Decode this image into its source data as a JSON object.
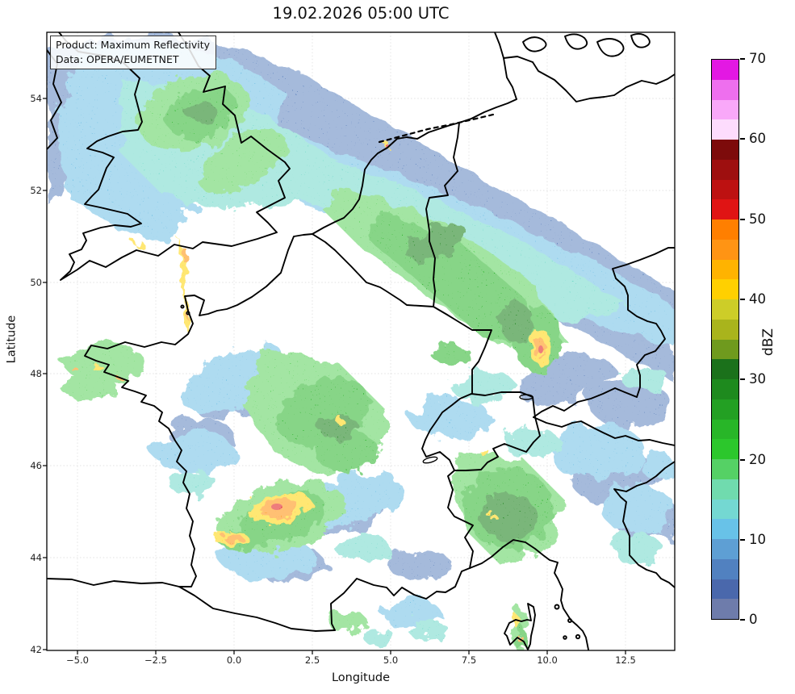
{
  "title": "19.02.2026 05:00 UTC",
  "info_box": {
    "line1": "Product: Maximum Reflectivity",
    "line2": "Data: OPERA/EUMETNET"
  },
  "axes": {
    "xlabel": "Longitude",
    "ylabel": "Latitude",
    "x_ticks": [
      "−5.0",
      "−2.5",
      "0.0",
      "2.5",
      "5.0",
      "7.5",
      "10.0",
      "12.5"
    ],
    "y_ticks": [
      "54",
      "52",
      "50",
      "48",
      "46",
      "44",
      "42"
    ],
    "x_range": [
      -6.0,
      14.1
    ],
    "y_range": [
      42.0,
      55.4
    ]
  },
  "colorbar": {
    "label": "dBZ",
    "ticks": [
      "70",
      "60",
      "50",
      "40",
      "30",
      "20",
      "10",
      "0"
    ],
    "min": 0,
    "max": 70,
    "band_step_dbz": 2.5,
    "bands_top_to_bottom": [
      "#e318e3",
      "#ee6fee",
      "#f9a8f9",
      "#fddcfd",
      "#7d0b0b",
      "#9e0f0f",
      "#bd1111",
      "#e01414",
      "#ff7f00",
      "#ff9414",
      "#ffb300",
      "#ffd000",
      "#cdcd28",
      "#a9b41c",
      "#6f9a1e",
      "#1b711b",
      "#1e8a1e",
      "#23a023",
      "#28b628",
      "#2cc72c",
      "#55d165",
      "#70dbae",
      "#74d8d2",
      "#68c2e8",
      "#5e9fd4",
      "#5181c0",
      "#4a68ac",
      "#6e7cab"
    ]
  },
  "map": {
    "no_data_color": "#ffffff",
    "border_color": "#000000",
    "grid_color": "#c9c9c9",
    "radar_palette": {
      "slate_blue": "#5b81bd",
      "light_blue": "#6cbde4",
      "teal": "#6ed8c8",
      "light_green": "#58d058",
      "green": "#28b228",
      "dark_green": "#107a10",
      "yellow": "#ffd300",
      "orange": "#ff8c00",
      "red": "#e01010"
    }
  }
}
